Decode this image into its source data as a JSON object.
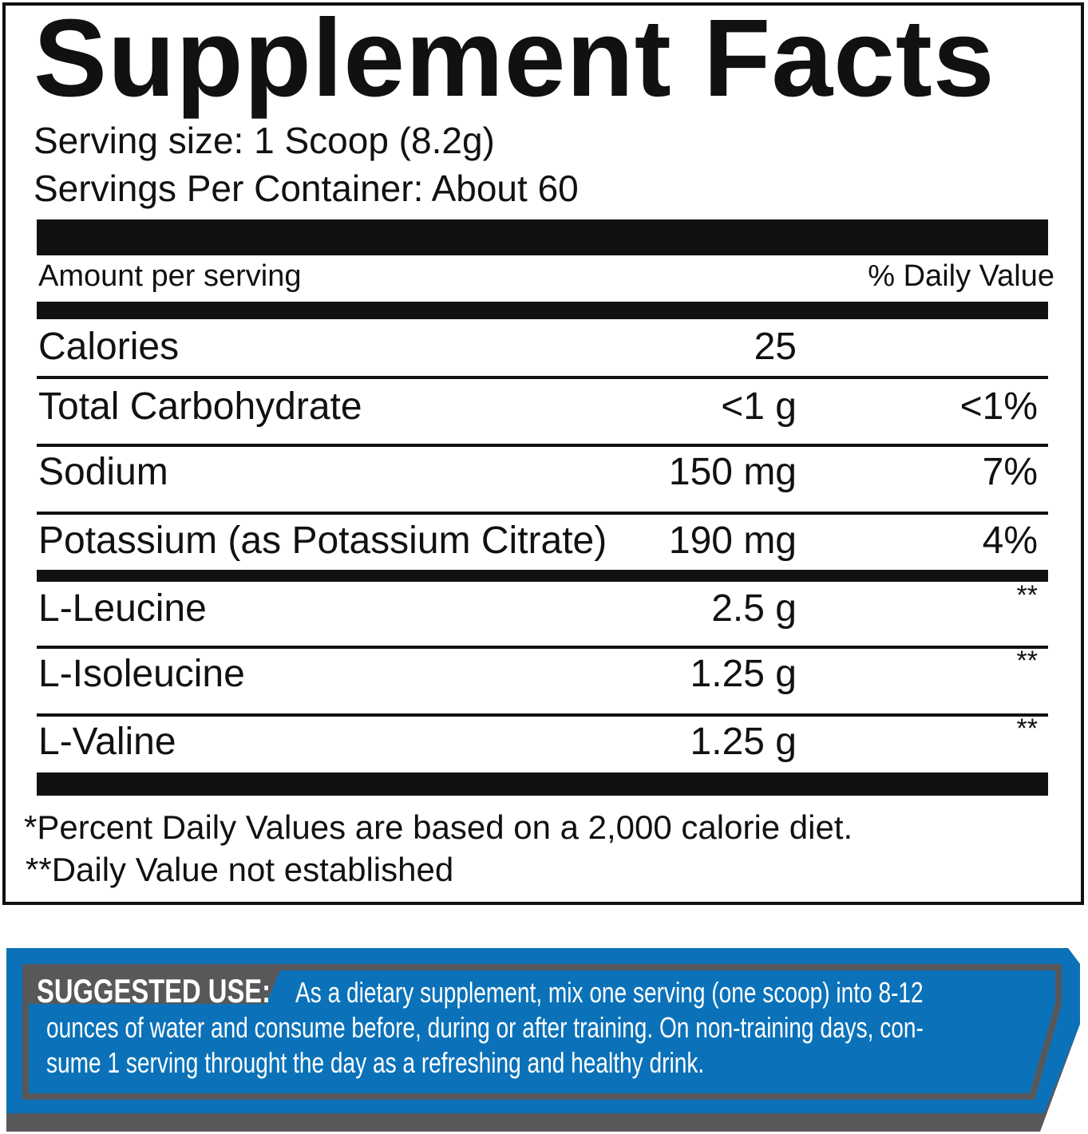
{
  "title": "Supplement Facts",
  "serving_size": "Serving size: 1 Scoop (8.2g)",
  "servings_per_container": "Servings Per Container: About 60",
  "header": {
    "amount": "Amount per serving",
    "dv": "% Daily Value"
  },
  "rows": [
    {
      "name": "Calories",
      "amount": "25",
      "dv": ""
    },
    {
      "name": "Total Carbohydrate",
      "amount": "<1 g",
      "dv": "<1%"
    },
    {
      "name": "Sodium",
      "amount": "150 mg",
      "dv": "7%"
    },
    {
      "name": "Potassium (as Potassium Citrate)",
      "amount": "190 mg",
      "dv": "4%"
    },
    {
      "name": "L-Leucine",
      "amount": "2.5 g",
      "dv": "**"
    },
    {
      "name": "L-Isoleucine",
      "amount": "1.25 g",
      "dv": "**"
    },
    {
      "name": "L-Valine",
      "amount": "1.25 g",
      "dv": "**"
    }
  ],
  "footnotes": [
    "*Percent Daily Values are based on a 2,000 calorie diet.",
    "**Daily Value not established"
  ],
  "suggested_use": {
    "label": "SUGGESTED USE:",
    "line1": "As a dietary supplement, mix one serving (one scoop) into 8-12",
    "line2": "ounces of water and consume before, during or after training. On non-training days, con-",
    "line3": "sume 1 serving throught the day as a refreshing and healthy drink."
  },
  "colors": {
    "blue": "#0b72b9",
    "gray": "#58585a",
    "ink": "#111111"
  }
}
